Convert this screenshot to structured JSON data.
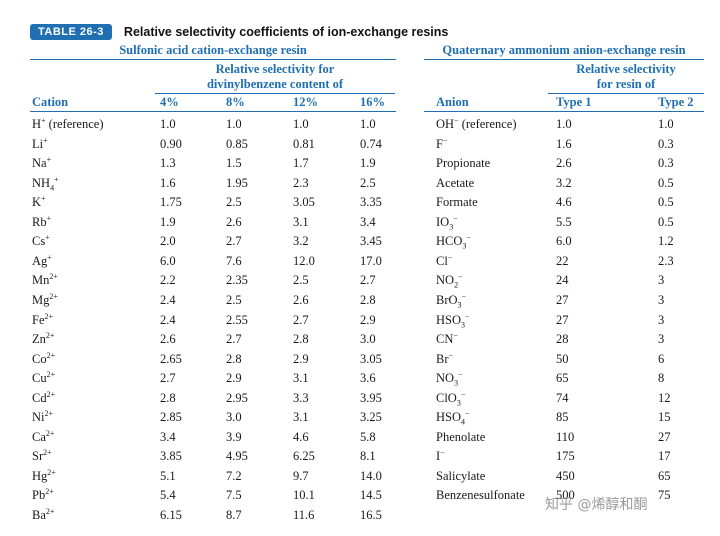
{
  "table": {
    "badge": "TABLE 26-3",
    "title": "Relative selectivity coefficients of ion-exchange resins",
    "cation_section": {
      "heading": "Sulfonic acid cation-exchange resin",
      "subheading_line1": "Relative selectivity for",
      "subheading_line2": "divinylbenzene content of",
      "col_label": "Cation",
      "columns": [
        "4%",
        "8%",
        "12%",
        "16%"
      ],
      "rows": [
        {
          "ion": "H",
          "sup": "+",
          "sub": "",
          "note": " (reference)",
          "values": [
            "1.0",
            "1.0",
            "1.0",
            "1.0"
          ]
        },
        {
          "ion": "Li",
          "sup": "+",
          "sub": "",
          "note": "",
          "values": [
            "0.90",
            "0.85",
            "0.81",
            "0.74"
          ]
        },
        {
          "ion": "Na",
          "sup": "+",
          "sub": "",
          "note": "",
          "values": [
            "1.3",
            "1.5",
            "1.7",
            "1.9"
          ]
        },
        {
          "ion": "NH",
          "sup": "+",
          "sub": "4",
          "note": "",
          "values": [
            "1.6",
            "1.95",
            "2.3",
            "2.5"
          ]
        },
        {
          "ion": "K",
          "sup": "+",
          "sub": "",
          "note": "",
          "values": [
            "1.75",
            "2.5",
            "3.05",
            "3.35"
          ]
        },
        {
          "ion": "Rb",
          "sup": "+",
          "sub": "",
          "note": "",
          "values": [
            "1.9",
            "2.6",
            "3.1",
            "3.4"
          ]
        },
        {
          "ion": "Cs",
          "sup": "+",
          "sub": "",
          "note": "",
          "values": [
            "2.0",
            "2.7",
            "3.2",
            "3.45"
          ]
        },
        {
          "ion": "Ag",
          "sup": "+",
          "sub": "",
          "note": "",
          "values": [
            "6.0",
            "7.6",
            "12.0",
            "17.0"
          ]
        },
        {
          "ion": "Mn",
          "sup": "2+",
          "sub": "",
          "note": "",
          "values": [
            "2.2",
            "2.35",
            "2.5",
            "2.7"
          ]
        },
        {
          "ion": "Mg",
          "sup": "2+",
          "sub": "",
          "note": "",
          "values": [
            "2.4",
            "2.5",
            "2.6",
            "2.8"
          ]
        },
        {
          "ion": "Fe",
          "sup": "2+",
          "sub": "",
          "note": "",
          "values": [
            "2.4",
            "2.55",
            "2.7",
            "2.9"
          ]
        },
        {
          "ion": "Zn",
          "sup": "2+",
          "sub": "",
          "note": "",
          "values": [
            "2.6",
            "2.7",
            "2.8",
            "3.0"
          ]
        },
        {
          "ion": "Co",
          "sup": "2+",
          "sub": "",
          "note": "",
          "values": [
            "2.65",
            "2.8",
            "2.9",
            "3.05"
          ]
        },
        {
          "ion": "Cu",
          "sup": "2+",
          "sub": "",
          "note": "",
          "values": [
            "2.7",
            "2.9",
            "3.1",
            "3.6"
          ]
        },
        {
          "ion": "Cd",
          "sup": "2+",
          "sub": "",
          "note": "",
          "values": [
            "2.8",
            "2.95",
            "3.3",
            "3.95"
          ]
        },
        {
          "ion": "Ni",
          "sup": "2+",
          "sub": "",
          "note": "",
          "values": [
            "2.85",
            "3.0",
            "3.1",
            "3.25"
          ]
        },
        {
          "ion": "Ca",
          "sup": "2+",
          "sub": "",
          "note": "",
          "values": [
            "3.4",
            "3.9",
            "4.6",
            "5.8"
          ]
        },
        {
          "ion": "Sr",
          "sup": "2+",
          "sub": "",
          "note": "",
          "values": [
            "3.85",
            "4.95",
            "6.25",
            "8.1"
          ]
        },
        {
          "ion": "Hg",
          "sup": "2+",
          "sub": "",
          "note": "",
          "values": [
            "5.1",
            "7.2",
            "9.7",
            "14.0"
          ]
        },
        {
          "ion": "Pb",
          "sup": "2+",
          "sub": "",
          "note": "",
          "values": [
            "5.4",
            "7.5",
            "10.1",
            "14.5"
          ]
        },
        {
          "ion": "Ba",
          "sup": "2+",
          "sub": "",
          "note": "",
          "values": [
            "6.15",
            "8.7",
            "11.6",
            "16.5"
          ]
        }
      ]
    },
    "anion_section": {
      "heading": "Quaternary ammonium anion-exchange resin",
      "subheading_line1": "Relative selectivity",
      "subheading_line2": "for resin of",
      "col_label": "Anion",
      "columns": [
        "Type 1",
        "Type 2"
      ],
      "rows": [
        {
          "ion": "OH",
          "sup": "−",
          "sub": "",
          "note": " (reference)",
          "values": [
            "1.0",
            "1.0"
          ]
        },
        {
          "ion": "F",
          "sup": "−",
          "sub": "",
          "note": "",
          "values": [
            "1.6",
            "0.3"
          ]
        },
        {
          "ion": "Propionate",
          "sup": "",
          "sub": "",
          "note": "",
          "values": [
            "2.6",
            "0.3"
          ]
        },
        {
          "ion": "Acetate",
          "sup": "",
          "sub": "",
          "note": "",
          "values": [
            "3.2",
            "0.5"
          ]
        },
        {
          "ion": "Formate",
          "sup": "",
          "sub": "",
          "note": "",
          "values": [
            "4.6",
            "0.5"
          ]
        },
        {
          "ion": "IO",
          "sup": "−",
          "sub": "3",
          "note": "",
          "values": [
            "5.5",
            "0.5"
          ]
        },
        {
          "ion": "HCO",
          "sup": "−",
          "sub": "3",
          "note": "",
          "values": [
            "6.0",
            "1.2"
          ]
        },
        {
          "ion": "Cl",
          "sup": "−",
          "sub": "",
          "note": "",
          "values": [
            "22",
            "2.3"
          ]
        },
        {
          "ion": "NO",
          "sup": "−",
          "sub": "2",
          "note": "",
          "values": [
            "24",
            "3"
          ]
        },
        {
          "ion": "BrO",
          "sup": "−",
          "sub": "3",
          "note": "",
          "values": [
            "27",
            "3"
          ]
        },
        {
          "ion": "HSO",
          "sup": "−",
          "sub": "3",
          "note": "",
          "values": [
            "27",
            "3"
          ]
        },
        {
          "ion": "CN",
          "sup": "−",
          "sub": "",
          "note": "",
          "values": [
            "28",
            "3"
          ]
        },
        {
          "ion": "Br",
          "sup": "−",
          "sub": "",
          "note": "",
          "values": [
            "50",
            "6"
          ]
        },
        {
          "ion": "NO",
          "sup": "−",
          "sub": "3",
          "note": "",
          "values": [
            "65",
            "8"
          ]
        },
        {
          "ion": "ClO",
          "sup": "−",
          "sub": "3",
          "note": "",
          "values": [
            "74",
            "12"
          ]
        },
        {
          "ion": "HSO",
          "sup": "−",
          "sub": "4",
          "note": "",
          "values": [
            "85",
            "15"
          ]
        },
        {
          "ion": "Phenolate",
          "sup": "",
          "sub": "",
          "note": "",
          "values": [
            "110",
            "27"
          ]
        },
        {
          "ion": "I",
          "sup": "−",
          "sub": "",
          "note": "",
          "values": [
            "175",
            "17"
          ]
        },
        {
          "ion": "Salicylate",
          "sup": "",
          "sub": "",
          "note": "",
          "values": [
            "450",
            "65"
          ]
        },
        {
          "ion": "Benzenesulfonate",
          "sup": "",
          "sub": "",
          "note": "",
          "values": [
            "500",
            "75"
          ]
        }
      ]
    }
  },
  "watermark": "知乎 @烯醇和酮",
  "colors": {
    "accent": "#1f6fb2",
    "text": "#1a1a1a",
    "background": "#ffffff"
  }
}
